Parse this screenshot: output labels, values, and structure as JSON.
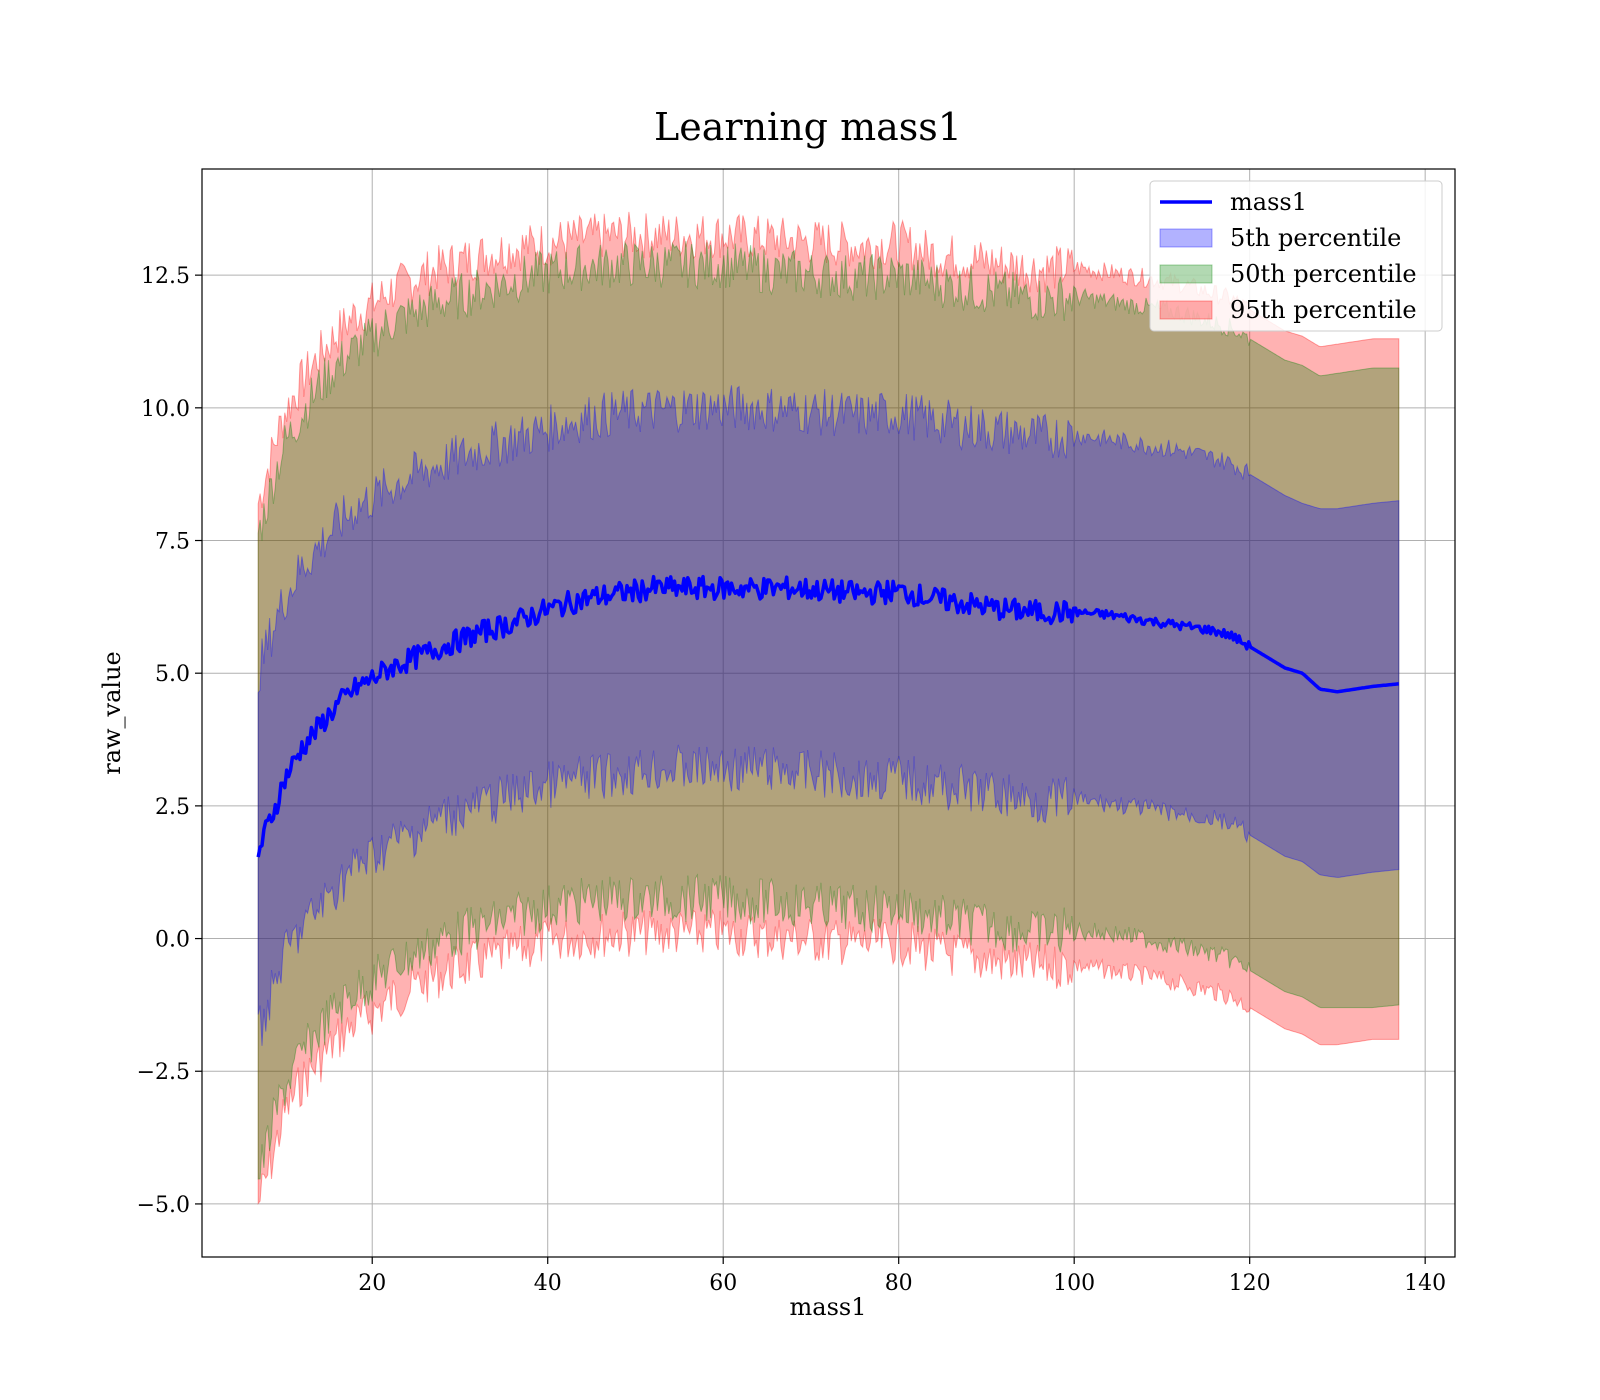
{
  "chart_data": {
    "type": "area",
    "title": "Learning mass1",
    "xlabel": "mass1",
    "ylabel": "raw_value",
    "xlim": [
      0.6,
      143.4
    ],
    "ylim": [
      -6.0,
      14.5
    ],
    "xticks": [
      20,
      40,
      60,
      80,
      100,
      120,
      140
    ],
    "yticks": [
      -5.0,
      -2.5,
      0.0,
      2.5,
      5.0,
      7.5,
      10.0,
      12.5
    ],
    "xtick_labels": [
      "20",
      "40",
      "60",
      "80",
      "100",
      "120",
      "140"
    ],
    "ytick_labels": [
      "−5.0",
      "−2.5",
      "0.0",
      "2.5",
      "5.0",
      "7.5",
      "10.0",
      "12.5"
    ],
    "grid": true,
    "legend_position": "top-right",
    "legend": [
      {
        "label": "mass1",
        "kind": "line",
        "color": "#0000ff"
      },
      {
        "label": "5th percentile",
        "kind": "patch",
        "color": "#0000ff"
      },
      {
        "label": "50th percentile",
        "kind": "patch",
        "color": "#008000"
      },
      {
        "label": "95th percentile",
        "kind": "patch",
        "color": "#ff0000"
      }
    ],
    "x": [
      7,
      8,
      9,
      10,
      12,
      14,
      16,
      18,
      20,
      22,
      25,
      28,
      32,
      36,
      40,
      44,
      48,
      52,
      56,
      60,
      64,
      68,
      72,
      76,
      80,
      84,
      88,
      92,
      96,
      100,
      104,
      108,
      112,
      116,
      118,
      120,
      122,
      124,
      126,
      128,
      130,
      132,
      134,
      137
    ],
    "series": [
      {
        "name": "mass1",
        "type": "line",
        "color": "#0000ff",
        "values": [
          1.6,
          2.1,
          2.5,
          3.0,
          3.6,
          4.0,
          4.4,
          4.7,
          4.9,
          5.1,
          5.3,
          5.5,
          5.75,
          5.95,
          6.2,
          6.4,
          6.5,
          6.6,
          6.6,
          6.6,
          6.6,
          6.6,
          6.55,
          6.5,
          6.55,
          6.4,
          6.3,
          6.2,
          6.15,
          6.15,
          6.1,
          6.0,
          5.9,
          5.8,
          5.7,
          5.5,
          5.3,
          5.1,
          5.0,
          4.7,
          4.65,
          4.7,
          4.75,
          4.8
        ]
      },
      {
        "name": "5th percentile",
        "type": "band",
        "color": "#0000ff",
        "lower": [
          -1.8,
          -1.3,
          -0.8,
          -0.3,
          0.2,
          0.6,
          1.0,
          1.35,
          1.55,
          1.8,
          2.0,
          2.3,
          2.5,
          2.7,
          2.9,
          3.0,
          3.1,
          3.2,
          3.2,
          3.2,
          3.2,
          3.15,
          3.1,
          3.0,
          3.05,
          2.9,
          2.8,
          2.7,
          2.6,
          2.6,
          2.55,
          2.45,
          2.35,
          2.25,
          2.15,
          1.95,
          1.75,
          1.55,
          1.45,
          1.2,
          1.15,
          1.2,
          1.25,
          1.3
        ],
        "upper": [
          5.0,
          5.5,
          6.0,
          6.4,
          7.0,
          7.4,
          7.8,
          8.1,
          8.3,
          8.5,
          8.75,
          8.95,
          9.2,
          9.4,
          9.6,
          9.8,
          9.9,
          9.95,
          10.0,
          10.0,
          10.0,
          9.95,
          9.9,
          9.85,
          9.9,
          9.75,
          9.65,
          9.55,
          9.45,
          9.5,
          9.4,
          9.3,
          9.2,
          9.05,
          8.95,
          8.75,
          8.55,
          8.35,
          8.2,
          8.1,
          8.1,
          8.15,
          8.2,
          8.25
        ]
      },
      {
        "name": "50th percentile",
        "type": "band",
        "color": "#008000",
        "lower": [
          -4.5,
          -3.9,
          -3.3,
          -2.8,
          -2.2,
          -1.7,
          -1.3,
          -1.0,
          -0.8,
          -0.55,
          -0.3,
          0.0,
          0.2,
          0.4,
          0.6,
          0.7,
          0.75,
          0.75,
          0.75,
          0.75,
          0.7,
          0.65,
          0.6,
          0.55,
          0.6,
          0.4,
          0.3,
          0.2,
          0.1,
          0.15,
          0.1,
          0.0,
          -0.15,
          -0.3,
          -0.4,
          -0.6,
          -0.8,
          -1.0,
          -1.1,
          -1.3,
          -1.3,
          -1.3,
          -1.3,
          -1.25
        ],
        "upper": [
          7.6,
          8.2,
          8.8,
          9.3,
          9.9,
          10.4,
          10.8,
          11.1,
          11.3,
          11.6,
          11.8,
          12.0,
          12.2,
          12.4,
          12.55,
          12.65,
          12.7,
          12.7,
          12.7,
          12.7,
          12.6,
          12.55,
          12.5,
          12.45,
          12.5,
          12.35,
          12.25,
          12.15,
          12.05,
          12.1,
          12.0,
          11.9,
          11.8,
          11.6,
          11.5,
          11.3,
          11.1,
          10.9,
          10.8,
          10.6,
          10.65,
          10.7,
          10.75,
          10.75
        ]
      },
      {
        "name": "95th percentile",
        "type": "band",
        "color": "#ff0000",
        "lower": [
          -5.0,
          -4.5,
          -3.9,
          -3.3,
          -2.7,
          -2.3,
          -1.9,
          -1.6,
          -1.4,
          -1.15,
          -0.9,
          -0.65,
          -0.45,
          -0.25,
          -0.05,
          0.05,
          0.1,
          0.1,
          0.1,
          0.1,
          0.05,
          0.0,
          -0.05,
          -0.1,
          -0.05,
          -0.25,
          -0.35,
          -0.45,
          -0.55,
          -0.5,
          -0.6,
          -0.7,
          -0.85,
          -1.0,
          -1.1,
          -1.3,
          -1.5,
          -1.7,
          -1.8,
          -2.0,
          -2.0,
          -1.95,
          -1.9,
          -1.9
        ],
        "upper": [
          8.2,
          8.8,
          9.4,
          9.9,
          10.5,
          11.0,
          11.4,
          11.75,
          11.95,
          12.2,
          12.45,
          12.65,
          12.85,
          13.0,
          13.1,
          13.2,
          13.25,
          13.25,
          13.25,
          13.25,
          13.2,
          13.15,
          13.1,
          13.05,
          13.1,
          12.9,
          12.8,
          12.7,
          12.6,
          12.65,
          12.55,
          12.45,
          12.35,
          12.15,
          12.05,
          11.85,
          11.65,
          11.45,
          11.35,
          11.15,
          11.2,
          11.25,
          11.3,
          11.3
        ]
      }
    ]
  }
}
